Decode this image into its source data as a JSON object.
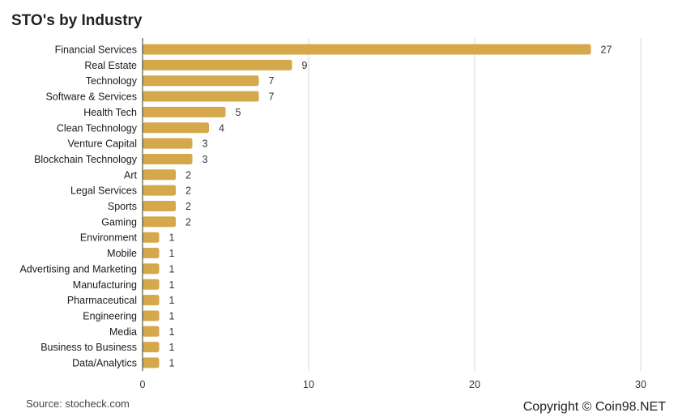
{
  "chart_data": {
    "type": "bar",
    "orientation": "horizontal",
    "title": "STO's by Industry",
    "xlabel": "",
    "ylabel": "",
    "categories": [
      "Financial Services",
      "Real Estate",
      "Technology",
      "Software & Services",
      "Health Tech",
      "Clean Technology",
      "Venture Capital",
      "Blockchain Technology",
      "Art",
      "Legal Services",
      "Sports",
      "Gaming",
      "Environment",
      "Mobile",
      "Advertising and Marketing",
      "Manufacturing",
      "Pharmaceutical",
      "Engineering",
      "Media",
      "Business to Business",
      "Data/Analytics"
    ],
    "values": [
      27,
      9,
      7,
      7,
      5,
      4,
      3,
      3,
      2,
      2,
      2,
      2,
      1,
      1,
      1,
      1,
      1,
      1,
      1,
      1,
      1
    ],
    "xlim": [
      0,
      30
    ],
    "xticks": [
      0,
      10,
      20,
      30
    ],
    "grid": true,
    "legend": "none",
    "bar_color": "#D4A84B"
  },
  "footer": {
    "source": "Source: stocheck.com",
    "copyright": "Copyright © Coin98.NET"
  }
}
